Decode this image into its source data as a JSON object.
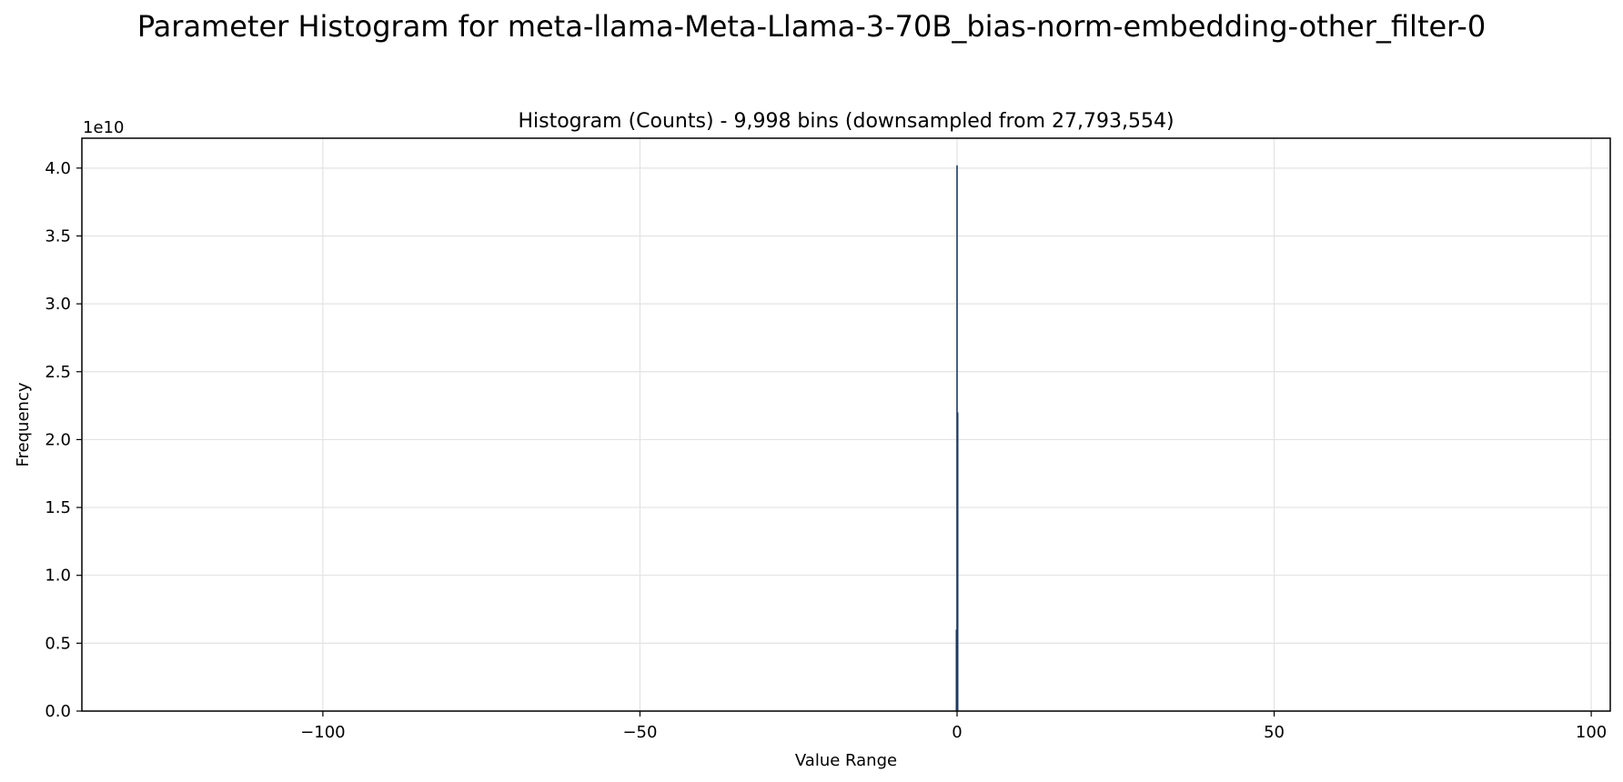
{
  "chart_data": {
    "type": "bar",
    "suptitle": "Parameter Histogram for meta-llama-Meta-Llama-3-70B_bias-norm-embedding-other_filter-0",
    "title": "Histogram (Counts) - 9,998 bins (downsampled from 27,793,554)",
    "xlabel": "Value Range",
    "ylabel": "Frequency",
    "y_offset_label": "1e10",
    "xlim": [
      -138,
      103
    ],
    "ylim": [
      0,
      4.22
    ],
    "x_ticks": [
      -100,
      -50,
      0,
      50,
      100
    ],
    "x_tick_labels": [
      "−100",
      "−50",
      "0",
      "50",
      "100"
    ],
    "y_ticks": [
      0.0,
      0.5,
      1.0,
      1.5,
      2.0,
      2.5,
      3.0,
      3.5,
      4.0
    ],
    "y_tick_labels": [
      "0.0",
      "0.5",
      "1.0",
      "1.5",
      "2.0",
      "2.5",
      "3.0",
      "3.5",
      "4.0"
    ],
    "grid": true,
    "bars": [
      {
        "x": 0.0,
        "value": 4.02
      },
      {
        "x": 0.1,
        "value": 2.2
      },
      {
        "x": -0.1,
        "value": 0.6
      }
    ],
    "bar_color": "#1f3a5f"
  }
}
